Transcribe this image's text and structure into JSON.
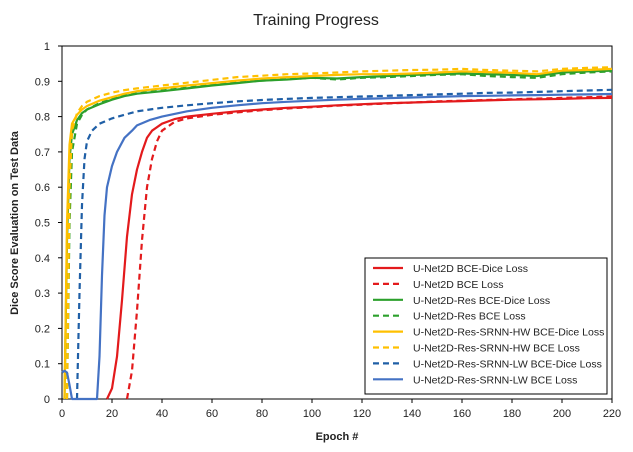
{
  "chart_data": {
    "type": "line",
    "title": "Training Progress",
    "xlabel": "Epoch #",
    "ylabel": "Dice Score Evaluation on Test Data",
    "xlim": [
      0,
      220
    ],
    "ylim": [
      0,
      1
    ],
    "x_ticks": [
      0,
      20,
      40,
      60,
      80,
      100,
      120,
      140,
      160,
      180,
      200,
      220
    ],
    "y_ticks": [
      0,
      0.1,
      0.2,
      0.3,
      0.4,
      0.5,
      0.6,
      0.7,
      0.8,
      0.9,
      1
    ],
    "grid": false,
    "legend_position": "bottom-right",
    "series": [
      {
        "name": "U-Net2D BCE-Dice Loss",
        "color": "#e31a1c",
        "dash": "solid",
        "points": [
          [
            18,
            0
          ],
          [
            20,
            0.03
          ],
          [
            22,
            0.12
          ],
          [
            24,
            0.28
          ],
          [
            26,
            0.46
          ],
          [
            28,
            0.58
          ],
          [
            30,
            0.65
          ],
          [
            32,
            0.7
          ],
          [
            34,
            0.74
          ],
          [
            36,
            0.76
          ],
          [
            40,
            0.78
          ],
          [
            45,
            0.793
          ],
          [
            50,
            0.8
          ],
          [
            60,
            0.808
          ],
          [
            70,
            0.815
          ],
          [
            80,
            0.82
          ],
          [
            90,
            0.825
          ],
          [
            100,
            0.828
          ],
          [
            110,
            0.832
          ],
          [
            120,
            0.835
          ],
          [
            130,
            0.838
          ],
          [
            140,
            0.84
          ],
          [
            150,
            0.842
          ],
          [
            160,
            0.844
          ],
          [
            170,
            0.846
          ],
          [
            180,
            0.848
          ],
          [
            190,
            0.849
          ],
          [
            200,
            0.85
          ],
          [
            210,
            0.852
          ],
          [
            220,
            0.853
          ]
        ]
      },
      {
        "name": "U-Net2D BCE Loss",
        "color": "#e31a1c",
        "dash": "dashed",
        "points": [
          [
            26,
            0
          ],
          [
            28,
            0.08
          ],
          [
            30,
            0.25
          ],
          [
            32,
            0.45
          ],
          [
            34,
            0.6
          ],
          [
            36,
            0.68
          ],
          [
            38,
            0.73
          ],
          [
            40,
            0.76
          ],
          [
            45,
            0.785
          ],
          [
            50,
            0.795
          ],
          [
            60,
            0.805
          ],
          [
            70,
            0.812
          ],
          [
            80,
            0.818
          ],
          [
            90,
            0.823
          ],
          [
            100,
            0.827
          ],
          [
            110,
            0.831
          ],
          [
            120,
            0.834
          ],
          [
            130,
            0.837
          ],
          [
            140,
            0.84
          ],
          [
            150,
            0.843
          ],
          [
            160,
            0.845
          ],
          [
            170,
            0.847
          ],
          [
            180,
            0.849
          ],
          [
            190,
            0.851
          ],
          [
            200,
            0.853
          ],
          [
            210,
            0.855
          ],
          [
            220,
            0.857
          ]
        ]
      },
      {
        "name": "U-Net2D-Res BCE-Dice Loss",
        "color": "#2ca02c",
        "dash": "solid",
        "points": [
          [
            1,
            0
          ],
          [
            2,
            0.45
          ],
          [
            3,
            0.68
          ],
          [
            4,
            0.75
          ],
          [
            6,
            0.79
          ],
          [
            8,
            0.81
          ],
          [
            10,
            0.82
          ],
          [
            15,
            0.835
          ],
          [
            20,
            0.848
          ],
          [
            25,
            0.858
          ],
          [
            30,
            0.865
          ],
          [
            40,
            0.872
          ],
          [
            50,
            0.88
          ],
          [
            60,
            0.888
          ],
          [
            70,
            0.895
          ],
          [
            80,
            0.902
          ],
          [
            90,
            0.905
          ],
          [
            100,
            0.91
          ],
          [
            110,
            0.908
          ],
          [
            120,
            0.912
          ],
          [
            130,
            0.915
          ],
          [
            140,
            0.918
          ],
          [
            150,
            0.92
          ],
          [
            160,
            0.922
          ],
          [
            170,
            0.92
          ],
          [
            180,
            0.918
          ],
          [
            190,
            0.915
          ],
          [
            200,
            0.925
          ],
          [
            210,
            0.928
          ],
          [
            220,
            0.93
          ]
        ]
      },
      {
        "name": "U-Net2D-Res BCE Loss",
        "color": "#2ca02c",
        "dash": "dashed",
        "points": [
          [
            2,
            0
          ],
          [
            3,
            0.5
          ],
          [
            4,
            0.7
          ],
          [
            6,
            0.78
          ],
          [
            8,
            0.805
          ],
          [
            10,
            0.82
          ],
          [
            15,
            0.838
          ],
          [
            20,
            0.85
          ],
          [
            25,
            0.86
          ],
          [
            30,
            0.866
          ],
          [
            40,
            0.874
          ],
          [
            50,
            0.882
          ],
          [
            60,
            0.89
          ],
          [
            70,
            0.897
          ],
          [
            80,
            0.902
          ],
          [
            90,
            0.906
          ],
          [
            100,
            0.91
          ],
          [
            110,
            0.905
          ],
          [
            120,
            0.91
          ],
          [
            130,
            0.912
          ],
          [
            140,
            0.915
          ],
          [
            150,
            0.918
          ],
          [
            160,
            0.92
          ],
          [
            170,
            0.915
          ],
          [
            180,
            0.912
          ],
          [
            190,
            0.91
          ],
          [
            200,
            0.92
          ],
          [
            210,
            0.925
          ],
          [
            220,
            0.928
          ]
        ]
      },
      {
        "name": "U-Net2D-Res-SRNN-HW BCE-Dice Loss",
        "color": "#ffc000",
        "dash": "solid",
        "points": [
          [
            1,
            0
          ],
          [
            2,
            0.5
          ],
          [
            3,
            0.72
          ],
          [
            4,
            0.78
          ],
          [
            6,
            0.805
          ],
          [
            8,
            0.82
          ],
          [
            10,
            0.83
          ],
          [
            15,
            0.845
          ],
          [
            20,
            0.855
          ],
          [
            25,
            0.865
          ],
          [
            30,
            0.872
          ],
          [
            40,
            0.88
          ],
          [
            50,
            0.888
          ],
          [
            60,
            0.895
          ],
          [
            70,
            0.902
          ],
          [
            80,
            0.908
          ],
          [
            90,
            0.912
          ],
          [
            100,
            0.915
          ],
          [
            110,
            0.918
          ],
          [
            120,
            0.92
          ],
          [
            130,
            0.92
          ],
          [
            140,
            0.922
          ],
          [
            150,
            0.925
          ],
          [
            160,
            0.928
          ],
          [
            170,
            0.926
          ],
          [
            180,
            0.924
          ],
          [
            190,
            0.92
          ],
          [
            200,
            0.93
          ],
          [
            210,
            0.932
          ],
          [
            220,
            0.935
          ]
        ]
      },
      {
        "name": "U-Net2D-Res-SRNN-HW BCE Loss",
        "color": "#ffc000",
        "dash": "dashed",
        "points": [
          [
            2,
            0
          ],
          [
            3,
            0.6
          ],
          [
            4,
            0.76
          ],
          [
            6,
            0.81
          ],
          [
            8,
            0.83
          ],
          [
            10,
            0.842
          ],
          [
            15,
            0.858
          ],
          [
            20,
            0.868
          ],
          [
            25,
            0.875
          ],
          [
            30,
            0.88
          ],
          [
            40,
            0.888
          ],
          [
            50,
            0.896
          ],
          [
            60,
            0.904
          ],
          [
            70,
            0.912
          ],
          [
            80,
            0.916
          ],
          [
            90,
            0.92
          ],
          [
            100,
            0.922
          ],
          [
            110,
            0.925
          ],
          [
            120,
            0.928
          ],
          [
            130,
            0.93
          ],
          [
            140,
            0.932
          ],
          [
            150,
            0.933
          ],
          [
            160,
            0.935
          ],
          [
            170,
            0.932
          ],
          [
            180,
            0.93
          ],
          [
            190,
            0.928
          ],
          [
            200,
            0.935
          ],
          [
            210,
            0.938
          ],
          [
            220,
            0.94
          ]
        ]
      },
      {
        "name": "U-Net2D-Res-SRNN-LW BCE-Dice Loss",
        "color": "#1f5fa6",
        "dash": "dashed",
        "points": [
          [
            6,
            0
          ],
          [
            7,
            0.3
          ],
          [
            8,
            0.55
          ],
          [
            9,
            0.68
          ],
          [
            10,
            0.73
          ],
          [
            12,
            0.76
          ],
          [
            15,
            0.78
          ],
          [
            20,
            0.795
          ],
          [
            25,
            0.805
          ],
          [
            30,
            0.815
          ],
          [
            40,
            0.825
          ],
          [
            50,
            0.832
          ],
          [
            60,
            0.838
          ],
          [
            70,
            0.843
          ],
          [
            80,
            0.847
          ],
          [
            90,
            0.85
          ],
          [
            100,
            0.853
          ],
          [
            110,
            0.855
          ],
          [
            120,
            0.857
          ],
          [
            130,
            0.859
          ],
          [
            140,
            0.861
          ],
          [
            150,
            0.863
          ],
          [
            160,
            0.865
          ],
          [
            170,
            0.867
          ],
          [
            180,
            0.868
          ],
          [
            190,
            0.87
          ],
          [
            200,
            0.872
          ],
          [
            210,
            0.874
          ],
          [
            220,
            0.876
          ]
        ]
      },
      {
        "name": "U-Net2D-Res-SRNN-LW BCE Loss",
        "color": "#4472c4",
        "dash": "solid",
        "points": [
          [
            0,
            0.075
          ],
          [
            1,
            0.08
          ],
          [
            2,
            0.075
          ],
          [
            3,
            0.04
          ],
          [
            4,
            0
          ],
          [
            14,
            0
          ],
          [
            15,
            0.12
          ],
          [
            16,
            0.35
          ],
          [
            17,
            0.52
          ],
          [
            18,
            0.6
          ],
          [
            20,
            0.66
          ],
          [
            22,
            0.7
          ],
          [
            25,
            0.74
          ],
          [
            28,
            0.76
          ],
          [
            30,
            0.775
          ],
          [
            35,
            0.79
          ],
          [
            40,
            0.8
          ],
          [
            50,
            0.815
          ],
          [
            60,
            0.825
          ],
          [
            70,
            0.832
          ],
          [
            80,
            0.838
          ],
          [
            90,
            0.842
          ],
          [
            100,
            0.845
          ],
          [
            110,
            0.848
          ],
          [
            120,
            0.85
          ],
          [
            130,
            0.852
          ],
          [
            140,
            0.854
          ],
          [
            150,
            0.856
          ],
          [
            160,
            0.858
          ],
          [
            170,
            0.859
          ],
          [
            180,
            0.86
          ],
          [
            190,
            0.861
          ],
          [
            200,
            0.862
          ],
          [
            210,
            0.863
          ],
          [
            220,
            0.864
          ]
        ]
      }
    ]
  }
}
